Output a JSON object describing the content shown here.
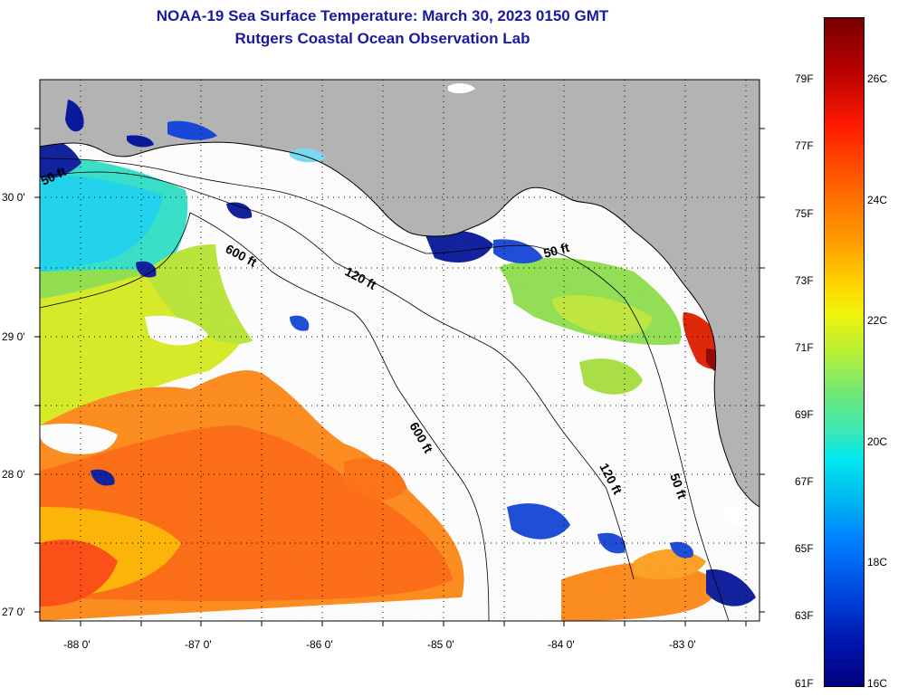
{
  "title": {
    "line1": "NOAA-19 Sea Surface Temperature:  March 30, 2023 0150 GMT",
    "line2": "Rutgers Coastal Ocean Observation Lab"
  },
  "map": {
    "latitude_labels": [
      "30 0'",
      "29 0'",
      "28 0'",
      "27 0'"
    ],
    "longitude_labels": [
      "-88 0'",
      "-87 0'",
      "-86 0'",
      "-85 0'",
      "-84 0'",
      "-83 0'"
    ],
    "contour_labels": [
      "50 ft",
      "600 ft",
      "120 ft",
      "50 ft",
      "600 ft",
      "120 ft",
      "50 ft"
    ],
    "colors": {
      "land": "#b3b3b3",
      "cloud": "#ffffff",
      "warm": "#ff6a10",
      "mid": "#f5d21a",
      "cool": "#0a1a9c"
    }
  },
  "colorbar": {
    "fahrenheit_labels": [
      "79F",
      "77F",
      "75F",
      "73F",
      "71F",
      "69F",
      "67F",
      "65F",
      "63F",
      "61F"
    ],
    "celsius_labels": [
      "26C",
      "24C",
      "22C",
      "20C",
      "18C",
      "16C"
    ]
  }
}
